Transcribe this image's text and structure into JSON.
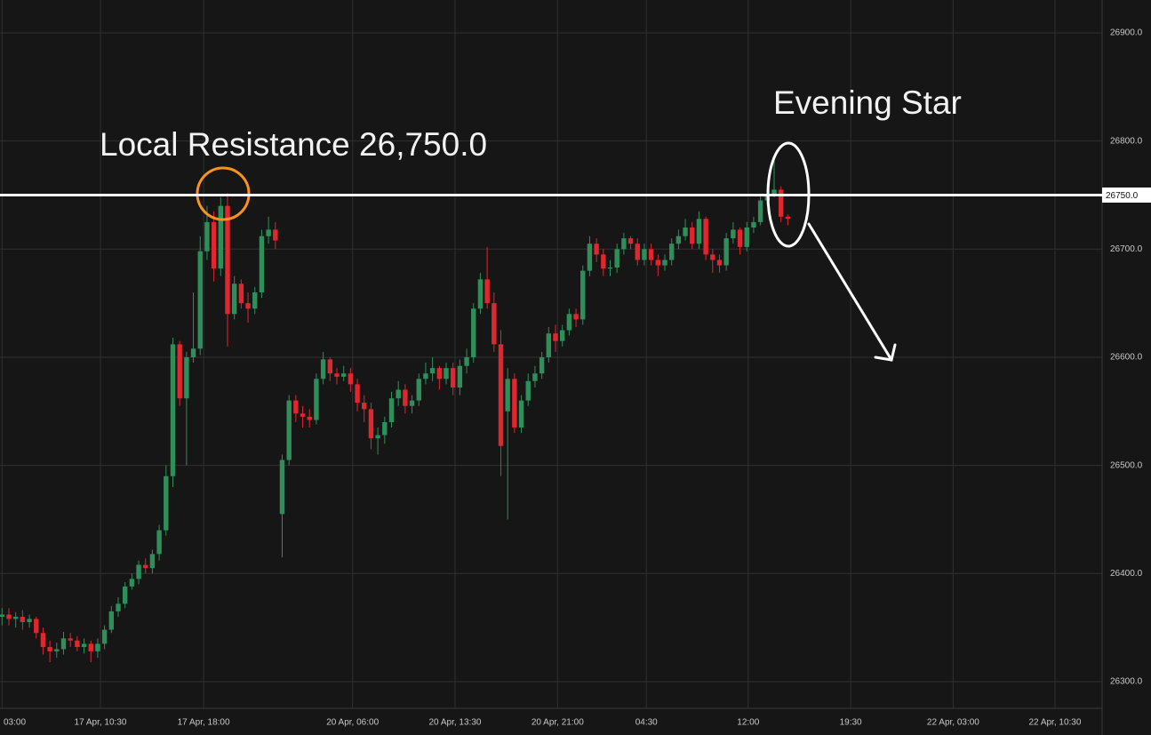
{
  "chart_data": {
    "type": "candlestick",
    "annotations": [
      "Local Resistance 26,750.0",
      "Evening Star"
    ],
    "up_color": "#2f8f5b",
    "down_color": "#e0262e",
    "grid": true,
    "resistance_line": {
      "value": 26750,
      "label": "26750.0"
    },
    "ylim": [
      26275.3,
      26930.4
    ],
    "yticks": [
      {
        "value": 26300,
        "label": "26300.0"
      },
      {
        "value": 26400,
        "label": "26400.0"
      },
      {
        "value": 26500,
        "label": "26500.0"
      },
      {
        "value": 26600,
        "label": "26600.0"
      },
      {
        "value": 26700,
        "label": "26700.0"
      },
      {
        "value": 26800,
        "label": "26800.0"
      },
      {
        "value": 26900,
        "label": "26900.0"
      }
    ],
    "xlim": [
      -0.3,
      161
    ],
    "xticks": [
      {
        "value": 0,
        "label": "03:00"
      },
      {
        "value": 14.4,
        "label": "17 Apr, 10:30"
      },
      {
        "value": 29.5,
        "label": "17 Apr, 18:00"
      },
      {
        "value": 51.3,
        "label": "20 Apr, 06:00"
      },
      {
        "value": 66.3,
        "label": "20 Apr, 13:30"
      },
      {
        "value": 81.3,
        "label": "20 Apr, 21:00"
      },
      {
        "value": 94.3,
        "label": "04:30"
      },
      {
        "value": 109.2,
        "label": "12:00"
      },
      {
        "value": 124.2,
        "label": "19:30"
      },
      {
        "value": 139.2,
        "label": "22 Apr, 03:00"
      },
      {
        "value": 154.1,
        "label": "22 Apr, 10:30"
      }
    ],
    "open": [
      26360,
      26362,
      26358,
      26360,
      26355,
      26358,
      26345,
      26332,
      26328,
      26330,
      26340,
      26338,
      26332,
      26335,
      26328,
      26335,
      26348,
      26365,
      26372,
      26388,
      26395,
      26408,
      26405,
      26418,
      26440,
      26490,
      26612,
      26562,
      26600,
      26608,
      26698,
      26725,
      26682,
      26740,
      26640,
      26668,
      26650,
      26645,
      26660,
      26712,
      26718,
      26455,
      26505,
      26560,
      26548,
      26545,
      26542,
      26580,
      26598,
      26585,
      26582,
      26585,
      26575,
      26558,
      26552,
      26525,
      26528,
      26540,
      26562,
      26570,
      26555,
      26560,
      26580,
      26585,
      26590,
      26580,
      26590,
      26572,
      26592,
      26600,
      26645,
      26672,
      26650,
      26612,
      26550,
      26580,
      26535,
      26560,
      26578,
      26585,
      26600,
      26622,
      26615,
      26625,
      26640,
      26635,
      26680,
      26705,
      26695,
      26682,
      26683,
      26700,
      26710,
      26705,
      26690,
      26700,
      26690,
      26685,
      26690,
      26705,
      26712,
      26720,
      26705,
      26728,
      26695,
      26690,
      26685,
      26710,
      26718,
      26702,
      26720,
      26725,
      26745,
      26750,
      26755,
      26730
    ],
    "high": [
      26368,
      26368,
      26364,
      26366,
      26362,
      26360,
      26350,
      26338,
      26336,
      26346,
      26345,
      26342,
      26340,
      26338,
      26340,
      26352,
      26370,
      26378,
      26392,
      26400,
      26412,
      26414,
      26422,
      26445,
      26500,
      26618,
      26615,
      26605,
      26660,
      26712,
      26740,
      26735,
      26748,
      26752,
      26675,
      26672,
      26660,
      26665,
      26718,
      26730,
      26725,
      26510,
      26565,
      26565,
      26555,
      26552,
      26585,
      26605,
      26600,
      26590,
      26592,
      26590,
      26580,
      26565,
      26558,
      26535,
      26545,
      26568,
      26578,
      26575,
      26565,
      26585,
      26595,
      26600,
      26592,
      26595,
      26595,
      26598,
      26608,
      26650,
      26678,
      26702,
      26660,
      26625,
      26590,
      26585,
      26565,
      26585,
      26592,
      26605,
      26628,
      26630,
      26630,
      26645,
      26645,
      26685,
      26712,
      26710,
      26700,
      26690,
      26705,
      26715,
      26712,
      26710,
      26705,
      26705,
      26695,
      26695,
      26710,
      26718,
      26728,
      26725,
      26735,
      26730,
      26700,
      26695,
      26715,
      26725,
      26720,
      26725,
      26730,
      26750,
      26760,
      26782,
      26758,
      26732
    ],
    "low": [
      26352,
      26352,
      26350,
      26348,
      26350,
      26340,
      26325,
      26318,
      26322,
      26325,
      26332,
      26328,
      26326,
      26318,
      26322,
      26330,
      26345,
      26360,
      26368,
      26385,
      26390,
      26400,
      26400,
      26412,
      26435,
      26480,
      26555,
      26500,
      26595,
      26602,
      26690,
      26670,
      26675,
      26610,
      26635,
      26645,
      26632,
      26640,
      26655,
      26705,
      26700,
      26415,
      26500,
      26540,
      26535,
      26535,
      26538,
      26575,
      26578,
      26575,
      26578,
      26568,
      26550,
      26540,
      26515,
      26510,
      26520,
      26535,
      26555,
      26548,
      26548,
      26555,
      26575,
      26578,
      26570,
      26575,
      26565,
      26565,
      26585,
      26595,
      26640,
      26645,
      26605,
      26490,
      26450,
      26530,
      26530,
      26555,
      26572,
      26580,
      26595,
      26605,
      26610,
      26620,
      26628,
      26630,
      26675,
      26688,
      26675,
      26675,
      26678,
      26695,
      26700,
      26685,
      26685,
      26685,
      26675,
      26680,
      26685,
      26700,
      26708,
      26700,
      26700,
      26690,
      26678,
      26678,
      26680,
      26705,
      26695,
      26698,
      26715,
      26722,
      26740,
      26748,
      26725,
      26722
    ],
    "close": [
      26362,
      26358,
      26360,
      26355,
      26358,
      26345,
      26332,
      26328,
      26330,
      26340,
      26338,
      26332,
      26335,
      26328,
      26335,
      26348,
      26365,
      26372,
      26388,
      26395,
      26408,
      26405,
      26418,
      26440,
      26490,
      26612,
      26562,
      26600,
      26608,
      26698,
      26725,
      26682,
      26740,
      26640,
      26668,
      26650,
      26645,
      26660,
      26712,
      26718,
      26708,
      26505,
      26560,
      26548,
      26545,
      26542,
      26580,
      26598,
      26585,
      26582,
      26585,
      26575,
      26558,
      26552,
      26525,
      26528,
      26540,
      26562,
      26570,
      26555,
      26560,
      26580,
      26585,
      26590,
      26580,
      26590,
      26572,
      26592,
      26600,
      26645,
      26672,
      26650,
      26612,
      26518,
      26580,
      26535,
      26560,
      26578,
      26585,
      26600,
      26622,
      26615,
      26625,
      26640,
      26635,
      26680,
      26705,
      26695,
      26682,
      26683,
      26700,
      26710,
      26705,
      26690,
      26700,
      26690,
      26685,
      26690,
      26705,
      26712,
      26720,
      26705,
      26728,
      26695,
      26690,
      26685,
      26710,
      26718,
      26702,
      26720,
      26725,
      26745,
      26750,
      26755,
      26730,
      26728
    ]
  }
}
